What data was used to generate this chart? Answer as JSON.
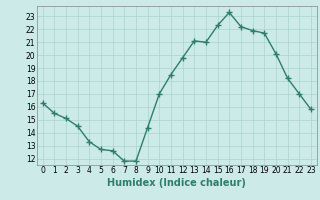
{
  "x": [
    0,
    1,
    2,
    3,
    4,
    5,
    6,
    7,
    8,
    9,
    10,
    11,
    12,
    13,
    14,
    15,
    16,
    17,
    18,
    19,
    20,
    21,
    22,
    23
  ],
  "y": [
    16.3,
    15.5,
    15.1,
    14.5,
    13.3,
    12.7,
    12.6,
    11.8,
    11.8,
    14.4,
    17.0,
    18.5,
    19.8,
    21.1,
    21.0,
    22.3,
    23.3,
    22.2,
    21.9,
    21.7,
    20.1,
    18.2,
    17.0,
    15.8
  ],
  "xlabel": "Humidex (Indice chaleur)",
  "ylim": [
    11.5,
    23.8
  ],
  "xlim": [
    -0.5,
    23.5
  ],
  "yticks": [
    12,
    13,
    14,
    15,
    16,
    17,
    18,
    19,
    20,
    21,
    22,
    23
  ],
  "xticks": [
    0,
    1,
    2,
    3,
    4,
    5,
    6,
    7,
    8,
    9,
    10,
    11,
    12,
    13,
    14,
    15,
    16,
    17,
    18,
    19,
    20,
    21,
    22,
    23
  ],
  "line_color": "#2e7d6e",
  "marker_color": "#2e7d6e",
  "bg_color": "#cceae7",
  "grid_color": "#aad4d0",
  "xlabel_fontsize": 7,
  "tick_fontsize": 5.5
}
